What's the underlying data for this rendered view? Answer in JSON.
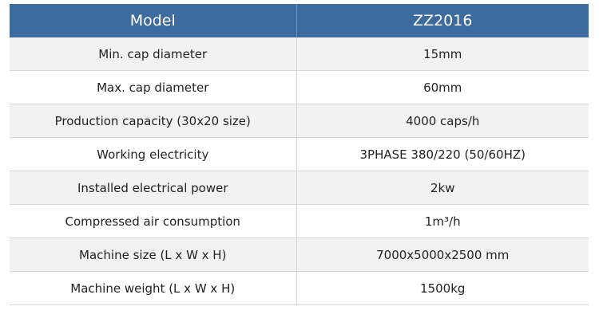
{
  "table": {
    "header": [
      "Model",
      "ZZ2016"
    ],
    "rows": [
      [
        "Min. cap diameter",
        "15mm"
      ],
      [
        "Max. cap diameter",
        "60mm"
      ],
      [
        "Production capacity (30x20 size)",
        "4000 caps/h"
      ],
      [
        "Working electricity",
        "3PHASE 380/220 (50/60HZ)"
      ],
      [
        "Installed electrical power",
        "2kw"
      ],
      [
        "Compressed air consumption",
        "1m³/h"
      ],
      [
        "Machine size (L x W x H)",
        "7000x5000x2500 mm"
      ],
      [
        "Machine weight (L x W x H)",
        "1500kg"
      ]
    ]
  }
}
